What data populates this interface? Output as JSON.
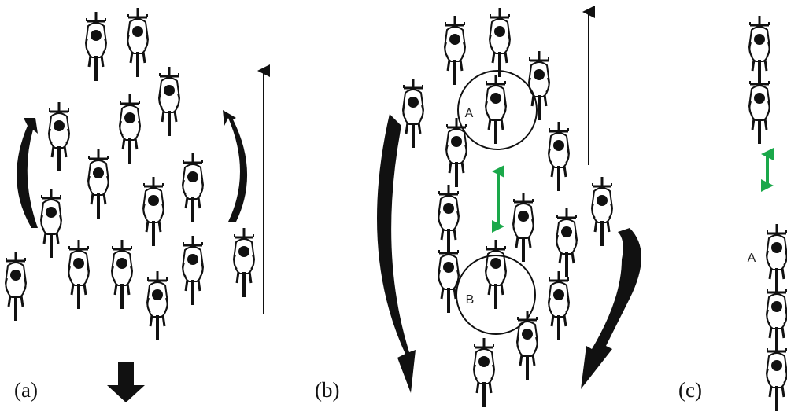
{
  "panels": [
    {
      "label": "(a)"
    },
    {
      "label": "(b)",
      "circles": [
        {
          "label": "A"
        },
        {
          "label": "B"
        }
      ]
    },
    {
      "label": "(c)",
      "markers": [
        {
          "label": "A"
        }
      ]
    }
  ]
}
